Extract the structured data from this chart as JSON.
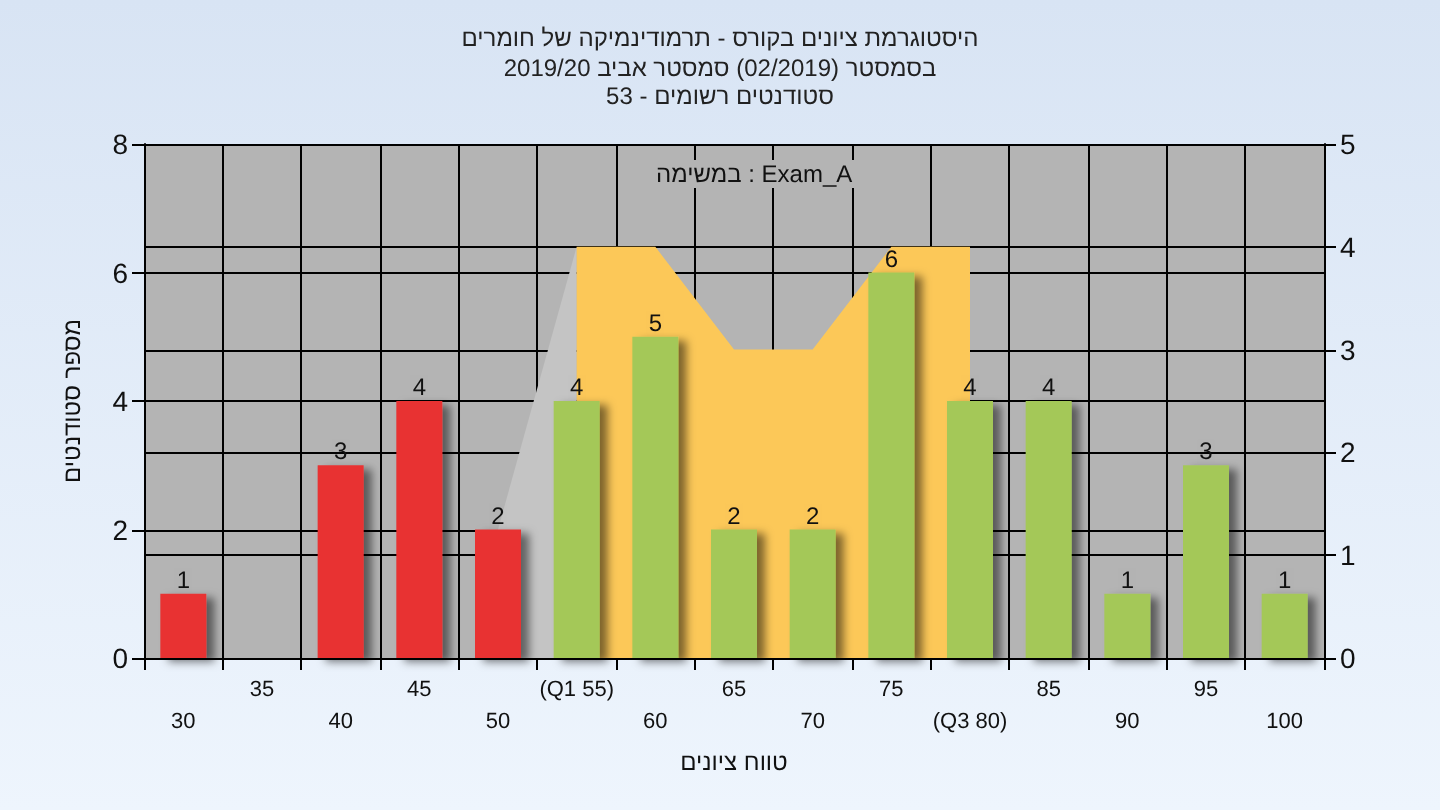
{
  "chart_data": {
    "type": "bar",
    "title": "היסטוגרמת ציונים בקורס - תרמודינמיקה של חומרים",
    "subtitle": "בסמסטר (02/2019) סמסטר אביב 2019/20\nסטודנטים רשומים - 53",
    "xlabel": "טווח ציונים",
    "ylabel": "מספר סטודנטים",
    "annotations": [
      "במשימה : Exam_A"
    ],
    "categories": [
      "30",
      "35",
      "40",
      "45",
      "50",
      "(Q1 55)",
      "60",
      "65",
      "70",
      "75",
      "(Q3 80)",
      "85",
      "90",
      "95",
      "100"
    ],
    "series": [
      {
        "colors": [
          "#e83030",
          "#e83030",
          "#e83030",
          "#e83030",
          "#e83030",
          "#a4c858",
          "#a4c858",
          "#a4c858",
          "#a4c858",
          "#a4c858",
          "#a4c858",
          "#a4c858",
          "#a4c858",
          "#a4c858",
          "#a4c858"
        ],
        "values": [
          1,
          0,
          3,
          4,
          2,
          4,
          5,
          2,
          2,
          6,
          4,
          4,
          1,
          3,
          1
        ],
        "value_labels": [
          "1",
          null,
          "3",
          "4",
          "2",
          "4",
          "5",
          "2",
          "2",
          "6",
          "4",
          "4",
          "1",
          "3",
          "1"
        ]
      },
      {
        "type": "area",
        "axis": "y2",
        "color": "#c4c4c4",
        "values": [
          null,
          null,
          null,
          null,
          1.25,
          4,
          null,
          null,
          null,
          null,
          null,
          null,
          null,
          null,
          null
        ]
      },
      {
        "type": "area",
        "axis": "y2",
        "color": "#fcc858",
        "values": [
          null,
          null,
          null,
          null,
          null,
          4,
          4,
          3,
          3,
          4,
          4,
          null,
          null,
          null,
          null
        ]
      }
    ],
    "ylim": [
      0,
      8
    ],
    "yticks": [
      0,
      2,
      4,
      6,
      8
    ],
    "y2lim": [
      0,
      5
    ],
    "y2ticks": [
      0,
      1,
      2,
      3,
      4,
      5
    ],
    "grid": true
  }
}
